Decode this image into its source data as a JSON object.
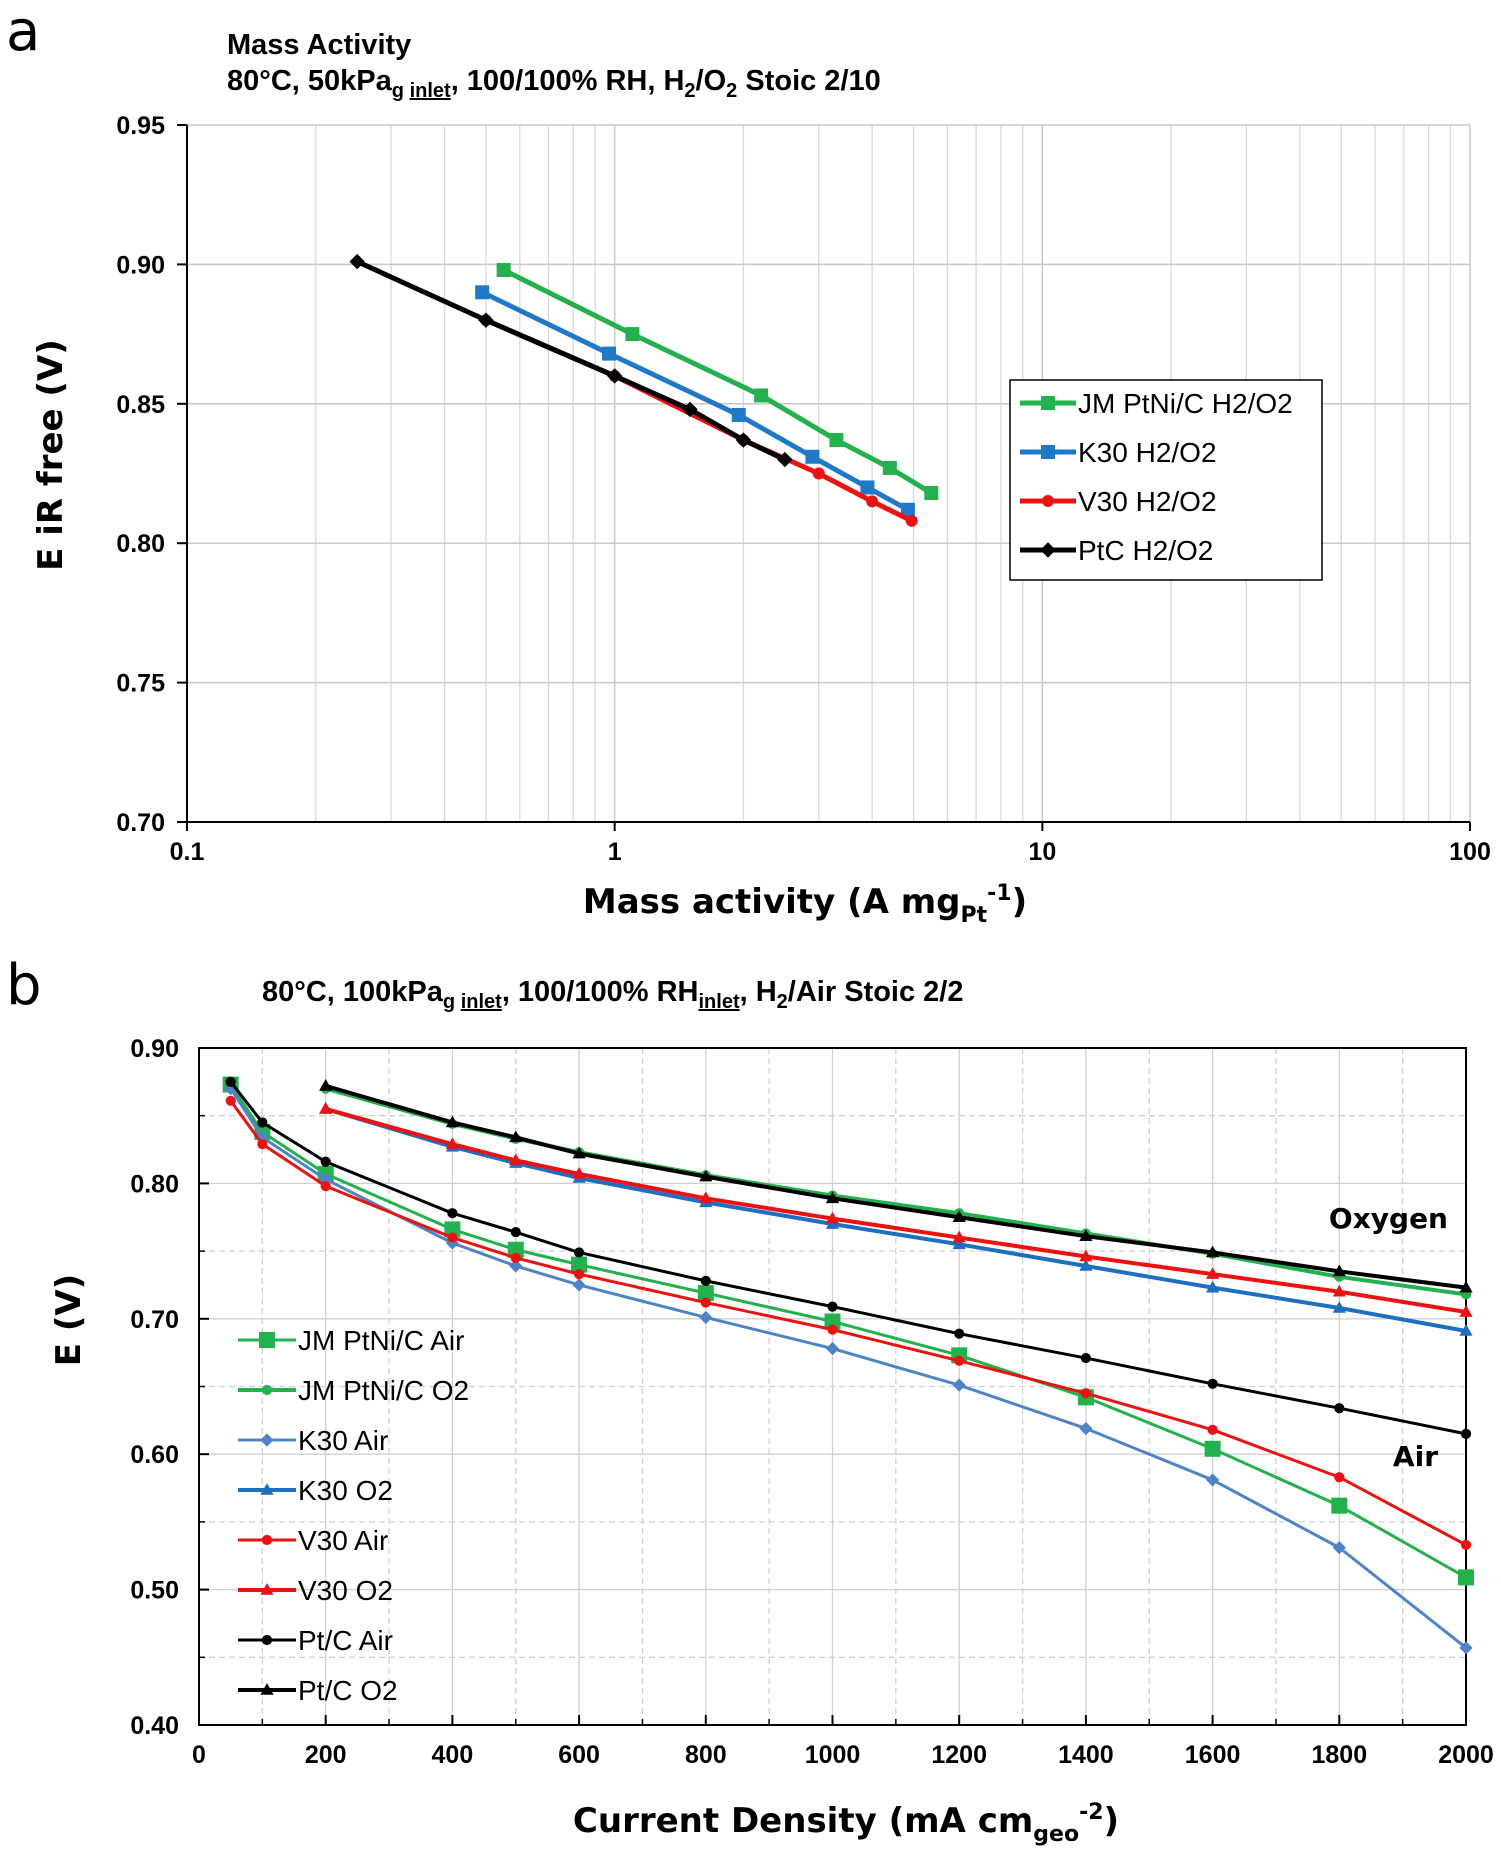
{
  "panel_a": {
    "letter": "a",
    "title_line1": "Mass Activity",
    "title_line2": {
      "p1": "80°C, 50kPa",
      "sub_g": "g",
      "sub_inlet": "inlet",
      "p2": ", 100/100% RH, H",
      "sub_2a": "2",
      "p3": "/O",
      "sub_2b": "2",
      "p4": " Stoic 2/10"
    },
    "ylabel": "E iR free (V)",
    "xlabel": {
      "main": "Mass activity (A mg",
      "sub": "Pt",
      "sup": "-1",
      "end": ")"
    }
  },
  "panel_b": {
    "letter": "b",
    "title": {
      "p1": "80°C, 100kPa",
      "sub_g": "g",
      "sub_inlet": "inlet",
      "p2": ", 100/100% RH",
      "sub_inlet2": "inlet",
      "p3": ", H",
      "sub_2": "2",
      "p4": "/Air Stoic 2/2"
    },
    "ylabel": "E (V)",
    "xlabel": {
      "main": "Current Density (mA cm",
      "sub": "geo",
      "sup": "-2",
      "end": ")"
    },
    "annotations": [
      "Oxygen",
      "Air"
    ]
  },
  "chart_data": [
    {
      "type": "line",
      "x_scale": "log",
      "xlim": [
        0.1,
        100
      ],
      "ylim": [
        0.7,
        0.95
      ],
      "x_ticks": [
        "0.1",
        "1",
        "10",
        "100"
      ],
      "y_ticks": [
        "0.70",
        "0.75",
        "0.80",
        "0.85",
        "0.90",
        "0.95"
      ],
      "grid": true,
      "legend_position": "right",
      "series": [
        {
          "name": "JM PtNi/C H2/O2",
          "color": "#22b14c",
          "marker": "square",
          "x": [
            0.55,
            1.1,
            2.2,
            3.3,
            4.4,
            5.5
          ],
          "y": [
            0.898,
            0.875,
            0.853,
            0.837,
            0.827,
            0.818
          ]
        },
        {
          "name": "K30 H2/O2",
          "color": "#1f78c8",
          "marker": "square",
          "x": [
            0.49,
            0.97,
            1.95,
            2.9,
            3.9,
            4.85
          ],
          "y": [
            0.89,
            0.868,
            0.846,
            0.831,
            0.82,
            0.812
          ]
        },
        {
          "name": "V30 H2/O2",
          "color": "#ee1111",
          "marker": "circle",
          "x": [
            0.5,
            1.0,
            2.0,
            3.0,
            4.0,
            4.95
          ],
          "y": [
            0.88,
            0.86,
            0.837,
            0.825,
            0.815,
            0.808
          ]
        },
        {
          "name": "PtC H2/O2",
          "color": "#000000",
          "marker": "diamond",
          "x": [
            0.25,
            0.5,
            1.0,
            1.5,
            2.0,
            2.5
          ],
          "y": [
            0.901,
            0.88,
            0.86,
            0.848,
            0.837,
            0.83
          ]
        }
      ]
    },
    {
      "type": "line",
      "xlim": [
        0,
        2000
      ],
      "ylim": [
        0.4,
        0.9
      ],
      "x_ticks": [
        "0",
        "200",
        "400",
        "600",
        "800",
        "1000",
        "1200",
        "1400",
        "1600",
        "1800",
        "2000"
      ],
      "y_ticks": [
        "0.40",
        "0.50",
        "0.60",
        "0.70",
        "0.80",
        "0.90"
      ],
      "grid": true,
      "legend_position": "left",
      "series": [
        {
          "name": "JM PtNi/C Air",
          "color": "#22b14c",
          "marker": "square",
          "x": [
            50,
            100,
            200,
            400,
            500,
            600,
            800,
            1000,
            1200,
            1400,
            1600,
            1800,
            2000
          ],
          "y": [
            0.873,
            0.838,
            0.807,
            0.766,
            0.751,
            0.74,
            0.719,
            0.698,
            0.673,
            0.642,
            0.604,
            0.562,
            0.509
          ]
        },
        {
          "name": "JM PtNi/C O2",
          "color": "#22b14c",
          "marker": "circle",
          "x": [
            200,
            400,
            500,
            600,
            800,
            1000,
            1200,
            1400,
            1600,
            1800,
            2000
          ],
          "y": [
            0.87,
            0.844,
            0.833,
            0.823,
            0.806,
            0.791,
            0.778,
            0.763,
            0.748,
            0.731,
            0.718
          ]
        },
        {
          "name": "K30 Air",
          "color": "#4d84c8",
          "marker": "diamond",
          "x": [
            50,
            100,
            200,
            400,
            500,
            600,
            800,
            1000,
            1200,
            1400,
            1600,
            1800,
            2000
          ],
          "y": [
            0.87,
            0.834,
            0.803,
            0.756,
            0.739,
            0.725,
            0.701,
            0.678,
            0.651,
            0.619,
            0.581,
            0.531,
            0.457
          ]
        },
        {
          "name": "K30 O2",
          "color": "#1f6fc0",
          "marker": "triangle",
          "x": [
            200,
            400,
            500,
            600,
            800,
            1000,
            1200,
            1400,
            1600,
            1800,
            2000
          ],
          "y": [
            0.855,
            0.827,
            0.815,
            0.804,
            0.786,
            0.77,
            0.755,
            0.739,
            0.723,
            0.708,
            0.691
          ]
        },
        {
          "name": "V30 Air",
          "color": "#ee1111",
          "marker": "circle",
          "x": [
            50,
            100,
            200,
            400,
            500,
            600,
            800,
            1000,
            1200,
            1400,
            1600,
            1800,
            2000
          ],
          "y": [
            0.861,
            0.829,
            0.798,
            0.76,
            0.745,
            0.733,
            0.712,
            0.692,
            0.669,
            0.645,
            0.618,
            0.583,
            0.533
          ]
        },
        {
          "name": "V30 O2",
          "color": "#ee1111",
          "marker": "triangle",
          "x": [
            200,
            400,
            500,
            600,
            800,
            1000,
            1200,
            1400,
            1600,
            1800,
            2000
          ],
          "y": [
            0.855,
            0.829,
            0.817,
            0.807,
            0.789,
            0.774,
            0.76,
            0.746,
            0.733,
            0.72,
            0.705
          ]
        },
        {
          "name": "Pt/C Air",
          "color": "#000000",
          "marker": "circle",
          "x": [
            50,
            100,
            200,
            400,
            500,
            600,
            800,
            1000,
            1200,
            1400,
            1600,
            1800,
            2000
          ],
          "y": [
            0.875,
            0.845,
            0.816,
            0.778,
            0.764,
            0.749,
            0.728,
            0.709,
            0.689,
            0.671,
            0.652,
            0.634,
            0.615
          ]
        },
        {
          "name": "Pt/C O2",
          "color": "#000000",
          "marker": "triangle",
          "x": [
            200,
            400,
            500,
            600,
            800,
            1000,
            1200,
            1400,
            1600,
            1800,
            2000
          ],
          "y": [
            0.872,
            0.845,
            0.834,
            0.822,
            0.805,
            0.789,
            0.775,
            0.761,
            0.749,
            0.735,
            0.723
          ]
        }
      ]
    }
  ]
}
